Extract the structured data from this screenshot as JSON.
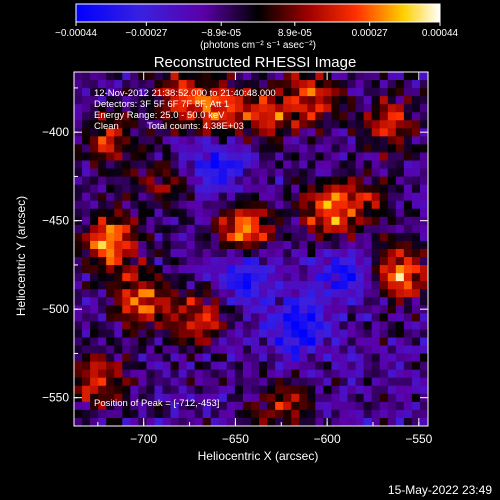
{
  "colorbar": {
    "ticks": [
      "-0.00044",
      "-0.00027",
      "-8.9e-05",
      "8.9e-05",
      "0.00027",
      "0.00044"
    ],
    "unit_label": "(photons cm⁻² s⁻¹ asec⁻²)",
    "range": [
      -0.00044,
      0.00044
    ]
  },
  "chart_data": {
    "type": "heatmap",
    "title": "Reconstructed RHESSI Image",
    "xlabel": "Heliocentric X (arcsec)",
    "ylabel": "Heliocentric Y (arcsec)",
    "xlim": [
      -738,
      -545
    ],
    "ylim": [
      -566,
      -366
    ],
    "xticks": [
      -700,
      -650,
      -600,
      -550
    ],
    "yticks": [
      -400,
      -450,
      -500,
      -550
    ],
    "xtick_labels": [
      "−700",
      "−650",
      "−600",
      "−550"
    ],
    "ytick_labels": [
      "−400",
      "−450",
      "−500",
      "−550"
    ],
    "peak_position": [
      -712,
      -453
    ],
    "hotspots": [
      {
        "x": -718,
        "y": -462,
        "v": 0.00044
      },
      {
        "x": -702,
        "y": -495,
        "v": 0.00038
      },
      {
        "x": -725,
        "y": -540,
        "v": 0.00032
      },
      {
        "x": -718,
        "y": -405,
        "v": 0.00028
      },
      {
        "x": -680,
        "y": -380,
        "v": 0.0003
      },
      {
        "x": -657,
        "y": -387,
        "v": 0.00034
      },
      {
        "x": -645,
        "y": -455,
        "v": 0.0004
      },
      {
        "x": -670,
        "y": -505,
        "v": 0.0003
      },
      {
        "x": -630,
        "y": -390,
        "v": 0.00026
      },
      {
        "x": -608,
        "y": -380,
        "v": 0.0003
      },
      {
        "x": -600,
        "y": -445,
        "v": 0.00036
      },
      {
        "x": -625,
        "y": -555,
        "v": 0.00026
      },
      {
        "x": -560,
        "y": -480,
        "v": 0.00042
      },
      {
        "x": -565,
        "y": -395,
        "v": 0.00028
      },
      {
        "x": -578,
        "y": -440,
        "v": 0.00022
      },
      {
        "x": -690,
        "y": -430,
        "v": 0.0002
      }
    ],
    "coldspots": [
      {
        "x": -645,
        "y": -480,
        "v": -0.0003
      },
      {
        "x": -615,
        "y": -510,
        "v": -0.00032
      },
      {
        "x": -590,
        "y": -480,
        "v": -0.00024
      },
      {
        "x": -660,
        "y": -420,
        "v": -0.00026
      }
    ]
  },
  "annotations": {
    "time_range": "12-Nov-2012 21:38:52.000 to 21:40:48.000",
    "detectors": "Detectors: 3F 5F 6F 7F 8F, Att 1",
    "energy": "Energy Range: 25.0 - 50.0 keV",
    "clean": "Clean",
    "counts": "Total counts: 4.38E+03",
    "peak": "Position of Peak = [-712,-453]"
  },
  "footer": {
    "date": "15-May-2022 23:49"
  }
}
